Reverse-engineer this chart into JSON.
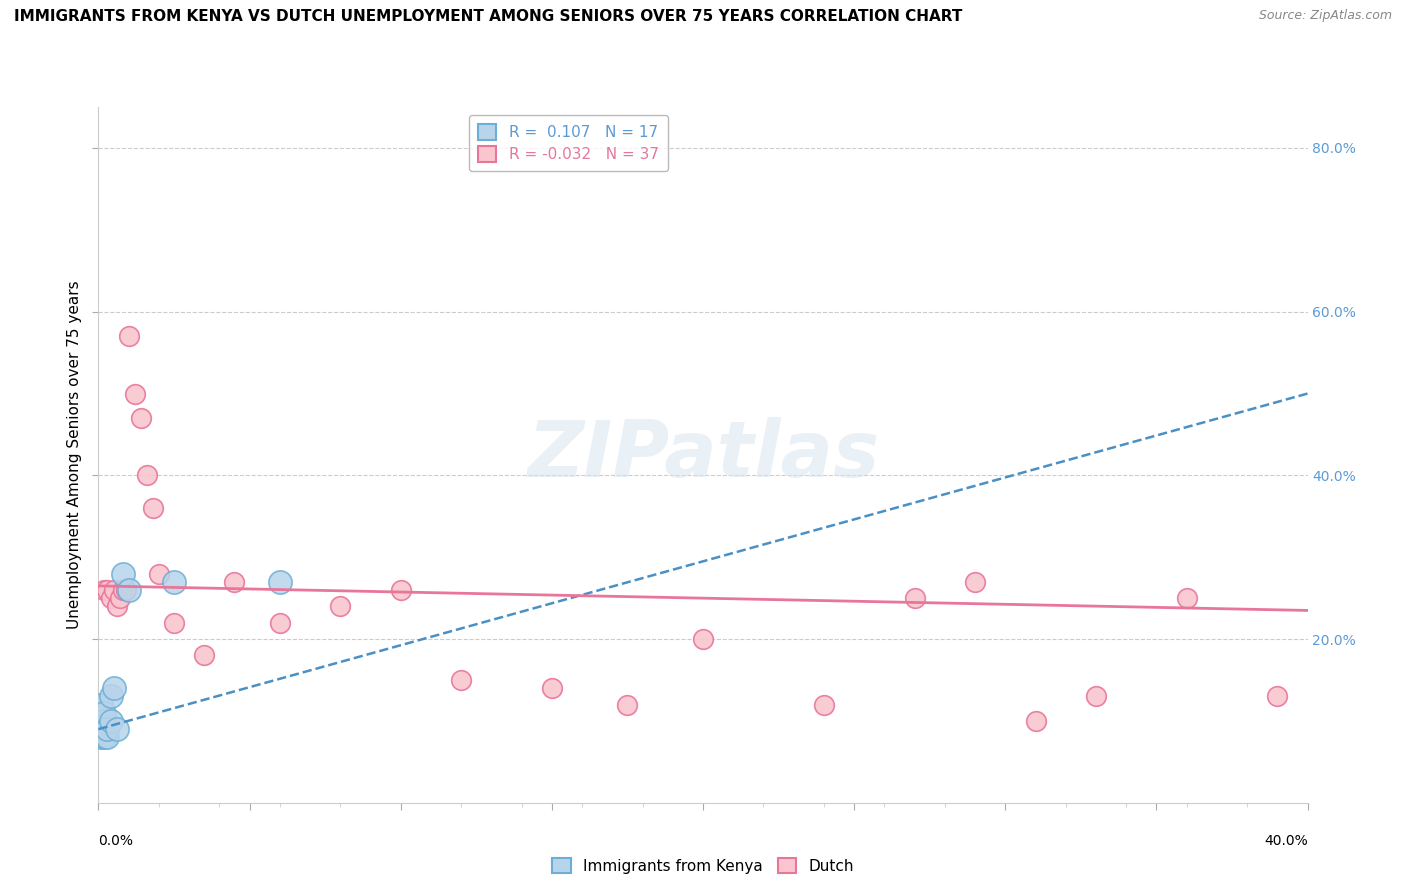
{
  "title": "IMMIGRANTS FROM KENYA VS DUTCH UNEMPLOYMENT AMONG SENIORS OVER 75 YEARS CORRELATION CHART",
  "source": "Source: ZipAtlas.com",
  "ylabel": "Unemployment Among Seniors over 75 years",
  "xlim": [
    0.0,
    0.4
  ],
  "ylim": [
    0.0,
    0.85
  ],
  "right_yticks": [
    0.2,
    0.4,
    0.6,
    0.8
  ],
  "right_yticklabels": [
    "20.0%",
    "40.0%",
    "60.0%",
    "80.0%"
  ],
  "legend_r1": "R =  0.107",
  "legend_n1": "N = 17",
  "legend_r2": "R = -0.032",
  "legend_n2": "N = 37",
  "blue_color": "#b8d4ea",
  "blue_edge_color": "#6baed6",
  "pink_color": "#f9c6cf",
  "pink_edge_color": "#e8769a",
  "trend_blue_color": "#4a90c4",
  "trend_pink_color": "#e8769a",
  "watermark": "ZIPatlas",
  "blue_scatter_x": [
    0.001,
    0.001,
    0.001,
    0.002,
    0.002,
    0.002,
    0.002,
    0.003,
    0.003,
    0.004,
    0.004,
    0.005,
    0.006,
    0.008,
    0.01,
    0.025,
    0.06
  ],
  "blue_scatter_y": [
    0.08,
    0.1,
    0.12,
    0.08,
    0.09,
    0.1,
    0.11,
    0.08,
    0.09,
    0.1,
    0.13,
    0.14,
    0.09,
    0.28,
    0.26,
    0.27,
    0.27
  ],
  "pink_scatter_x": [
    0.001,
    0.001,
    0.001,
    0.002,
    0.002,
    0.002,
    0.003,
    0.003,
    0.004,
    0.005,
    0.006,
    0.007,
    0.008,
    0.009,
    0.01,
    0.012,
    0.014,
    0.016,
    0.018,
    0.02,
    0.025,
    0.035,
    0.045,
    0.06,
    0.08,
    0.1,
    0.12,
    0.15,
    0.175,
    0.2,
    0.24,
    0.27,
    0.29,
    0.31,
    0.33,
    0.36,
    0.39
  ],
  "pink_scatter_y": [
    0.08,
    0.1,
    0.12,
    0.08,
    0.09,
    0.26,
    0.1,
    0.26,
    0.25,
    0.26,
    0.24,
    0.25,
    0.26,
    0.26,
    0.57,
    0.5,
    0.47,
    0.4,
    0.36,
    0.28,
    0.22,
    0.18,
    0.27,
    0.22,
    0.24,
    0.26,
    0.15,
    0.14,
    0.12,
    0.2,
    0.12,
    0.25,
    0.27,
    0.1,
    0.13,
    0.25,
    0.13
  ],
  "blue_trend_x": [
    0.0,
    0.4
  ],
  "blue_trend_y": [
    0.09,
    0.5
  ],
  "pink_trend_x": [
    0.0,
    0.4
  ],
  "pink_trend_y": [
    0.265,
    0.235
  ],
  "marker_size_blue": 280,
  "marker_size_pink": 200,
  "marker_linewidth": 1.2
}
